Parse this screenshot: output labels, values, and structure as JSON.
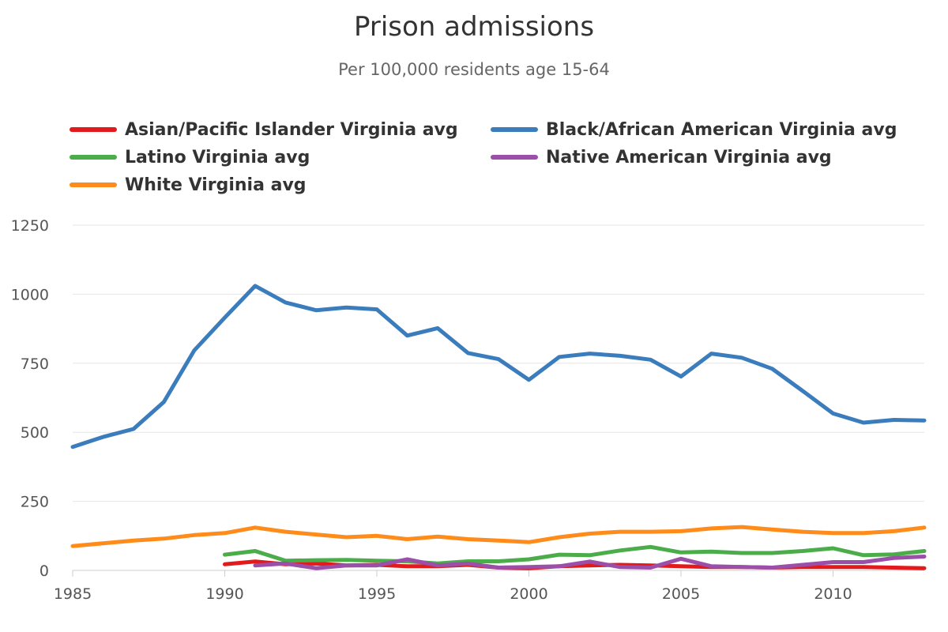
{
  "chart_data": {
    "type": "line",
    "title": "Prison admissions",
    "subtitle": "Per 100,000 residents age 15-64",
    "xlabel": "",
    "ylabel": "",
    "xlim": [
      1985,
      2013
    ],
    "ylim": [
      0,
      1250
    ],
    "x_ticks": [
      1985,
      1990,
      1995,
      2000,
      2005,
      2010
    ],
    "y_ticks": [
      0,
      250,
      500,
      750,
      1000,
      1250
    ],
    "grid": "horizontal",
    "legend_position": "top",
    "series": [
      {
        "name": "Asian/Pacific Islander Virginia avg",
        "color": "#e31a1c",
        "x": [
          1990,
          1991,
          1992,
          1993,
          1994,
          1995,
          1996,
          1997,
          1998,
          1999,
          2000,
          2001,
          2002,
          2003,
          2004,
          2005,
          2006,
          2007,
          2008,
          2009,
          2010,
          2011,
          2012,
          2013
        ],
        "values": [
          22,
          32,
          22,
          25,
          18,
          20,
          15,
          15,
          20,
          10,
          8,
          15,
          18,
          20,
          18,
          15,
          12,
          12,
          10,
          12,
          12,
          12,
          10,
          8
        ]
      },
      {
        "name": "Black/African American Virginia avg",
        "color": "#3b7dbc",
        "x": [
          1985,
          1986,
          1987,
          1988,
          1989,
          1990,
          1991,
          1992,
          1993,
          1994,
          1995,
          1996,
          1997,
          1998,
          1999,
          2000,
          2001,
          2002,
          2003,
          2004,
          2005,
          2006,
          2007,
          2008,
          2009,
          2010,
          2011,
          2012,
          2013
        ],
        "values": [
          447,
          483,
          512,
          610,
          797,
          915,
          1030,
          970,
          942,
          952,
          945,
          850,
          877,
          787,
          765,
          690,
          773,
          785,
          777,
          763,
          702,
          785,
          770,
          730,
          650,
          568,
          535,
          545,
          543
        ]
      },
      {
        "name": "Latino Virginia avg",
        "color": "#4aad4a",
        "x": [
          1990,
          1991,
          1992,
          1993,
          1994,
          1995,
          1996,
          1997,
          1998,
          1999,
          2000,
          2001,
          2002,
          2003,
          2004,
          2005,
          2006,
          2007,
          2008,
          2009,
          2010,
          2011,
          2012,
          2013
        ],
        "values": [
          57,
          70,
          35,
          37,
          38,
          35,
          33,
          25,
          33,
          33,
          40,
          57,
          55,
          72,
          85,
          65,
          68,
          63,
          63,
          70,
          80,
          55,
          58,
          70
        ]
      },
      {
        "name": "Native American Virginia avg",
        "color": "#9b4fa8",
        "x": [
          1991,
          1992,
          1993,
          1994,
          1995,
          1996,
          1997,
          1998,
          1999,
          2000,
          2001,
          2002,
          2003,
          2004,
          2005,
          2006,
          2007,
          2008,
          2009,
          2010,
          2011,
          2012,
          2013
        ],
        "values": [
          18,
          25,
          8,
          18,
          18,
          40,
          18,
          25,
          10,
          12,
          15,
          32,
          12,
          10,
          42,
          15,
          12,
          10,
          20,
          30,
          30,
          45,
          50
        ]
      },
      {
        "name": "White Virginia avg",
        "color": "#ff8c1a",
        "x": [
          1985,
          1986,
          1987,
          1988,
          1989,
          1990,
          1991,
          1992,
          1993,
          1994,
          1995,
          1996,
          1997,
          1998,
          1999,
          2000,
          2001,
          2002,
          2003,
          2004,
          2005,
          2006,
          2007,
          2008,
          2009,
          2010,
          2011,
          2012,
          2013
        ],
        "values": [
          88,
          98,
          108,
          115,
          128,
          135,
          155,
          140,
          130,
          120,
          125,
          113,
          122,
          113,
          108,
          102,
          120,
          133,
          140,
          140,
          142,
          152,
          157,
          148,
          140,
          135,
          135,
          142,
          155
        ]
      }
    ]
  }
}
